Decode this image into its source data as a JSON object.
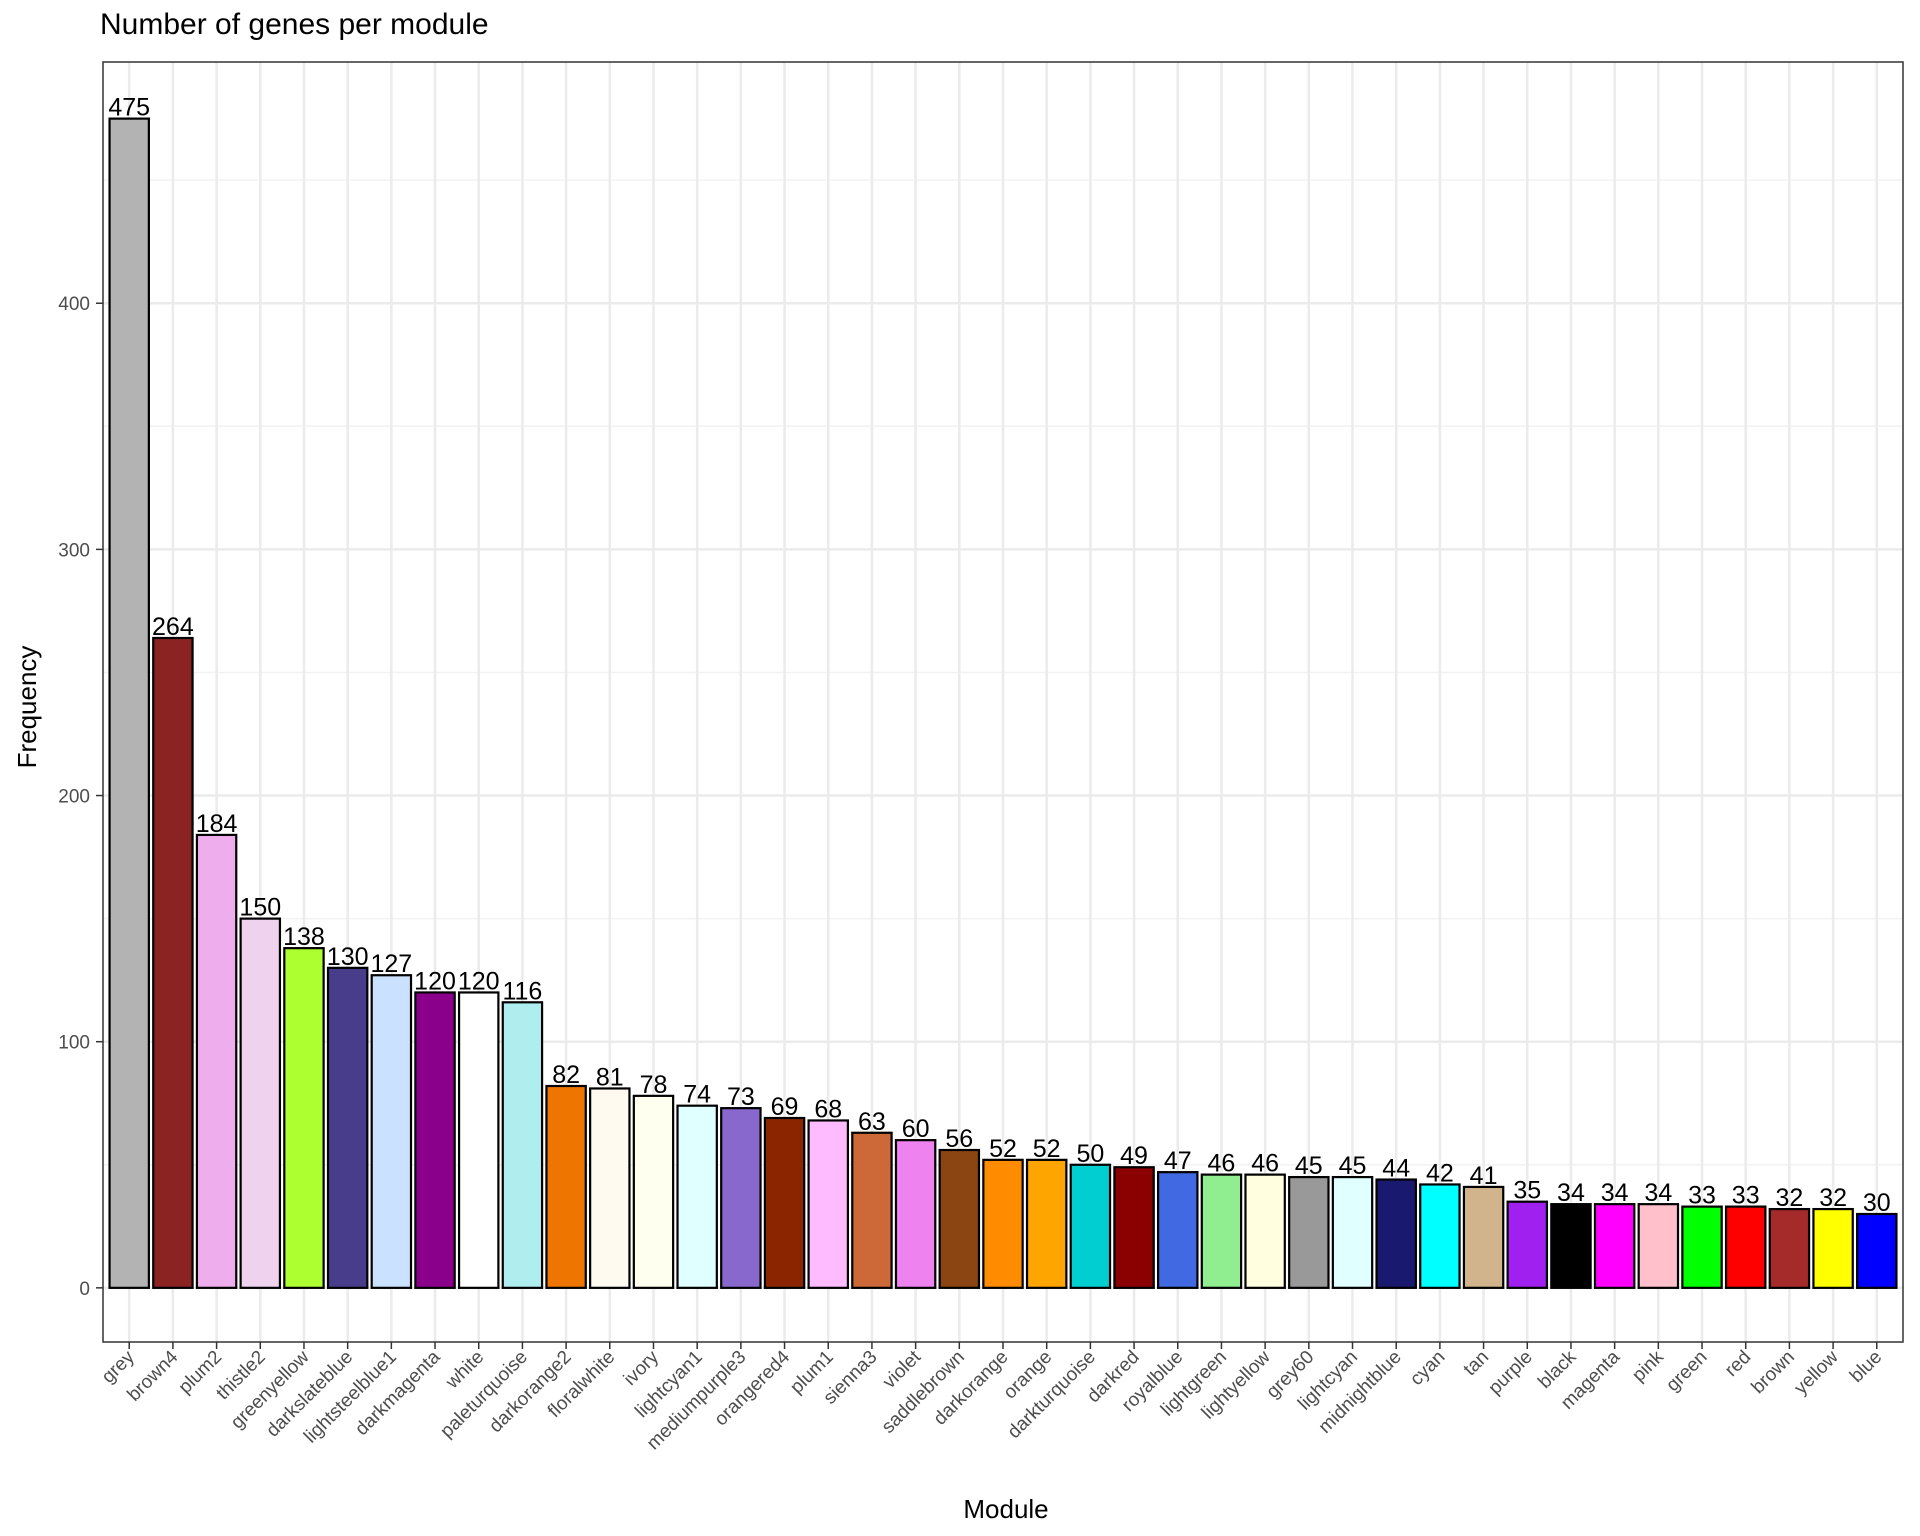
{
  "chart_data": {
    "type": "bar",
    "title": "Number of genes per module",
    "xlabel": "Module",
    "ylabel": "Frequency",
    "ylim": [
      -22,
      498
    ],
    "yticks": [
      0,
      100,
      200,
      300,
      400
    ],
    "grid": true,
    "categories": [
      "grey",
      "brown4",
      "plum2",
      "thistle2",
      "greenyellow",
      "darkslateblue",
      "lightsteelblue1",
      "darkmagenta",
      "white",
      "paleturquoise",
      "darkorange2",
      "floralwhite",
      "ivory",
      "lightcyan1",
      "mediumpurple3",
      "orangered4",
      "plum1",
      "sienna3",
      "violet",
      "saddlebrown",
      "darkorange",
      "orange",
      "darkturquoise",
      "darkred",
      "royalblue",
      "lightgreen",
      "lightyellow",
      "grey60",
      "lightcyan",
      "midnightblue",
      "cyan",
      "tan",
      "purple",
      "black",
      "magenta",
      "pink",
      "green",
      "red",
      "brown",
      "yellow",
      "blue"
    ],
    "values": [
      475,
      264,
      184,
      150,
      138,
      130,
      127,
      120,
      120,
      116,
      82,
      81,
      78,
      74,
      73,
      69,
      68,
      63,
      60,
      56,
      52,
      52,
      50,
      49,
      47,
      46,
      46,
      45,
      45,
      44,
      42,
      41,
      35,
      34,
      34,
      34,
      33,
      33,
      32,
      32,
      30
    ],
    "colors": [
      "#B3B3B3",
      "#8B2323",
      "#EEAEEE",
      "#EED2EE",
      "#ADFF2F",
      "#483D8B",
      "#CAE1FF",
      "#8B008B",
      "#FFFFFF",
      "#AFEEEE",
      "#EE7600",
      "#FFFAF0",
      "#FFFFF0",
      "#E0FFFF",
      "#8968CD",
      "#8B2500",
      "#FFBBFF",
      "#CD6839",
      "#EE82EE",
      "#8B4513",
      "#FF8C00",
      "#FFA500",
      "#00CED1",
      "#8B0000",
      "#4169E1",
      "#90EE90",
      "#FFFFE0",
      "#999999",
      "#E0FFFF",
      "#191970",
      "#00FFFF",
      "#D2B48C",
      "#A020F0",
      "#000000",
      "#FF00FF",
      "#FFC0CB",
      "#00FF00",
      "#FF0000",
      "#A52A2A",
      "#FFFF00",
      "#0000FF"
    ]
  }
}
